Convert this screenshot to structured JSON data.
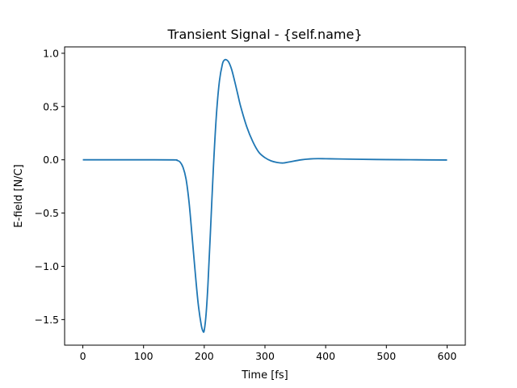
{
  "chart_data": {
    "type": "line",
    "title": "Transient Signal - {self.name}",
    "xlabel": "Time [fs]",
    "ylabel": "E-field [N/C]",
    "xlim": [
      -30,
      630
    ],
    "ylim": [
      -1.74,
      1.06
    ],
    "grid": false,
    "xticks": [
      {
        "value": 0,
        "label": "0"
      },
      {
        "value": 100,
        "label": "100"
      },
      {
        "value": 200,
        "label": "200"
      },
      {
        "value": 300,
        "label": "300"
      },
      {
        "value": 400,
        "label": "400"
      },
      {
        "value": 500,
        "label": "500"
      },
      {
        "value": 600,
        "label": "600"
      }
    ],
    "yticks": [
      {
        "value": 1.0,
        "label": "1.0"
      },
      {
        "value": 0.5,
        "label": "0.5"
      },
      {
        "value": 0.0,
        "label": "0.0"
      },
      {
        "value": -0.5,
        "label": "−0.5"
      },
      {
        "value": -1.0,
        "label": "−1.0"
      },
      {
        "value": -1.5,
        "label": "−1.5"
      }
    ],
    "series": [
      {
        "color": "#1f77b4",
        "x": [
          0,
          50,
          100,
          150,
          155,
          160,
          165,
          170,
          175,
          180,
          185,
          190,
          195,
          198,
          200,
          203,
          206,
          210,
          215,
          220,
          225,
          230,
          233,
          236,
          240,
          245,
          250,
          255,
          260,
          270,
          280,
          290,
          300,
          310,
          320,
          330,
          340,
          360,
          380,
          400,
          420,
          450,
          500,
          550,
          600
        ],
        "y": [
          0.0,
          0.0,
          0.0,
          -0.001,
          -0.005,
          -0.02,
          -0.07,
          -0.18,
          -0.4,
          -0.72,
          -1.05,
          -1.35,
          -1.55,
          -1.61,
          -1.6,
          -1.45,
          -1.18,
          -0.7,
          -0.08,
          0.42,
          0.74,
          0.9,
          0.935,
          0.94,
          0.92,
          0.85,
          0.74,
          0.62,
          0.5,
          0.31,
          0.17,
          0.07,
          0.02,
          -0.01,
          -0.025,
          -0.03,
          -0.02,
          0.0,
          0.01,
          0.01,
          0.008,
          0.005,
          0.002,
          0.0,
          -0.002
        ]
      }
    ]
  }
}
